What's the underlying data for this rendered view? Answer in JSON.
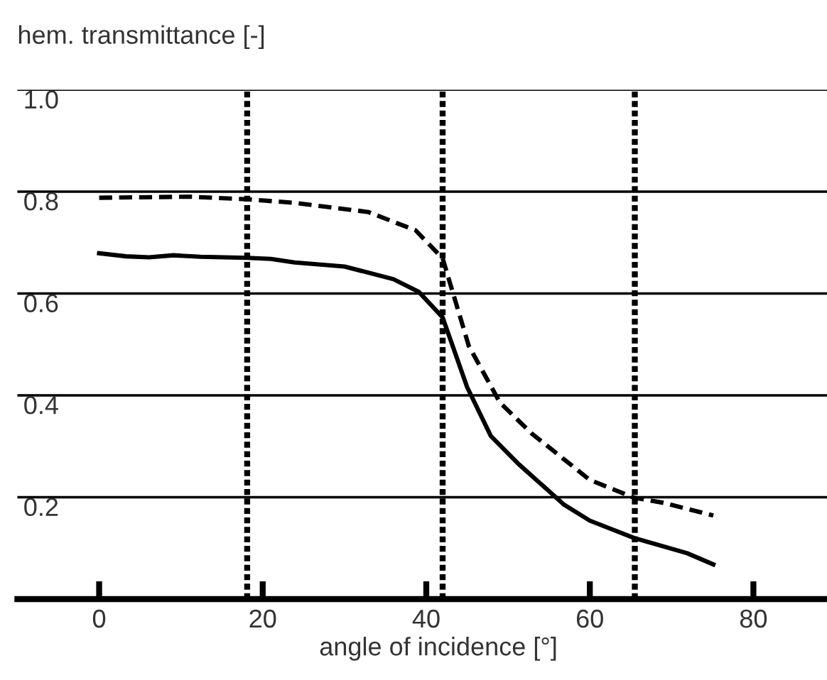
{
  "chart_data": {
    "type": "line",
    "ylabel": "hem. transmittance [-]",
    "xlabel": "angle of incidence [°]",
    "xlim": [
      -10,
      89
    ],
    "ylim": [
      0,
      1.0
    ],
    "xticks": [
      0,
      20,
      40,
      60,
      80
    ],
    "yticks": [
      {
        "value": 0,
        "label": null
      },
      0.2,
      0.4,
      0.6,
      0.8,
      {
        "value": 1.0,
        "label": "1.0"
      }
    ],
    "grid": "y",
    "legend": false,
    "marker": "none",
    "series": [
      {
        "color": "#000000",
        "line_style": "solid",
        "x": [
          0,
          3.3,
          6.1,
          9.1,
          12.4,
          18.1,
          21,
          23.9,
          30,
          36,
          39.1,
          42,
          45,
          47.9,
          51.3,
          56.8,
          60,
          65.4,
          71.9,
          75.1
        ],
        "values": [
          0.679,
          0.673,
          0.671,
          0.675,
          0.672,
          0.67,
          0.668,
          0.661,
          0.653,
          0.628,
          0.603,
          0.553,
          0.416,
          0.32,
          0.265,
          0.186,
          0.154,
          0.12,
          0.09,
          0.068
        ]
      },
      {
        "color": "#000000",
        "line_style": "dashed",
        "x": [
          0,
          11.1,
          18.1,
          23.9,
          32.9,
          38.7,
          42,
          45.2,
          49,
          52.9,
          60,
          65.4,
          69,
          75.1
        ],
        "values": [
          0.788,
          0.79,
          0.785,
          0.778,
          0.76,
          0.724,
          0.669,
          0.497,
          0.386,
          0.325,
          0.234,
          0.199,
          0.189,
          0.164
        ]
      }
    ],
    "ref_lines": [
      {
        "axis": "x",
        "value": 18.1,
        "line_style": "dotted",
        "color": "#000000"
      },
      {
        "axis": "x",
        "value": 42.0,
        "line_style": "dotted",
        "color": "#000000"
      },
      {
        "axis": "x",
        "value": 65.5,
        "line_style": "dotted",
        "color": "#000000"
      }
    ]
  }
}
